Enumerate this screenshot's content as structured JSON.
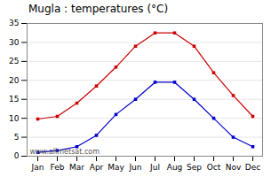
{
  "chart_data": {
    "type": "line",
    "title": "Mugla : temperatures (°C)",
    "categories": [
      "Jan",
      "Feb",
      "Mar",
      "Apr",
      "May",
      "Jun",
      "Jul",
      "Aug",
      "Sep",
      "Oct",
      "Nov",
      "Dec"
    ],
    "series": [
      {
        "color": "#cc0000",
        "marker": "square",
        "line_style": "solid",
        "values": [
          9.8,
          10.5,
          14.0,
          18.5,
          23.5,
          29.0,
          32.5,
          32.5,
          29.0,
          22.0,
          16.0,
          10.5
        ]
      },
      {
        "color": "#0000cc",
        "marker": "square",
        "line_style": "solid",
        "values": [
          1.0,
          1.5,
          2.5,
          5.5,
          11.0,
          15.0,
          19.5,
          19.5,
          15.0,
          10.0,
          5.0,
          2.5
        ]
      }
    ],
    "ylim": [
      0,
      35
    ],
    "yticks": [
      0,
      5,
      10,
      15,
      20,
      25,
      30,
      35
    ],
    "grid": true,
    "annotations": [
      "www.allmetsat.com"
    ]
  }
}
